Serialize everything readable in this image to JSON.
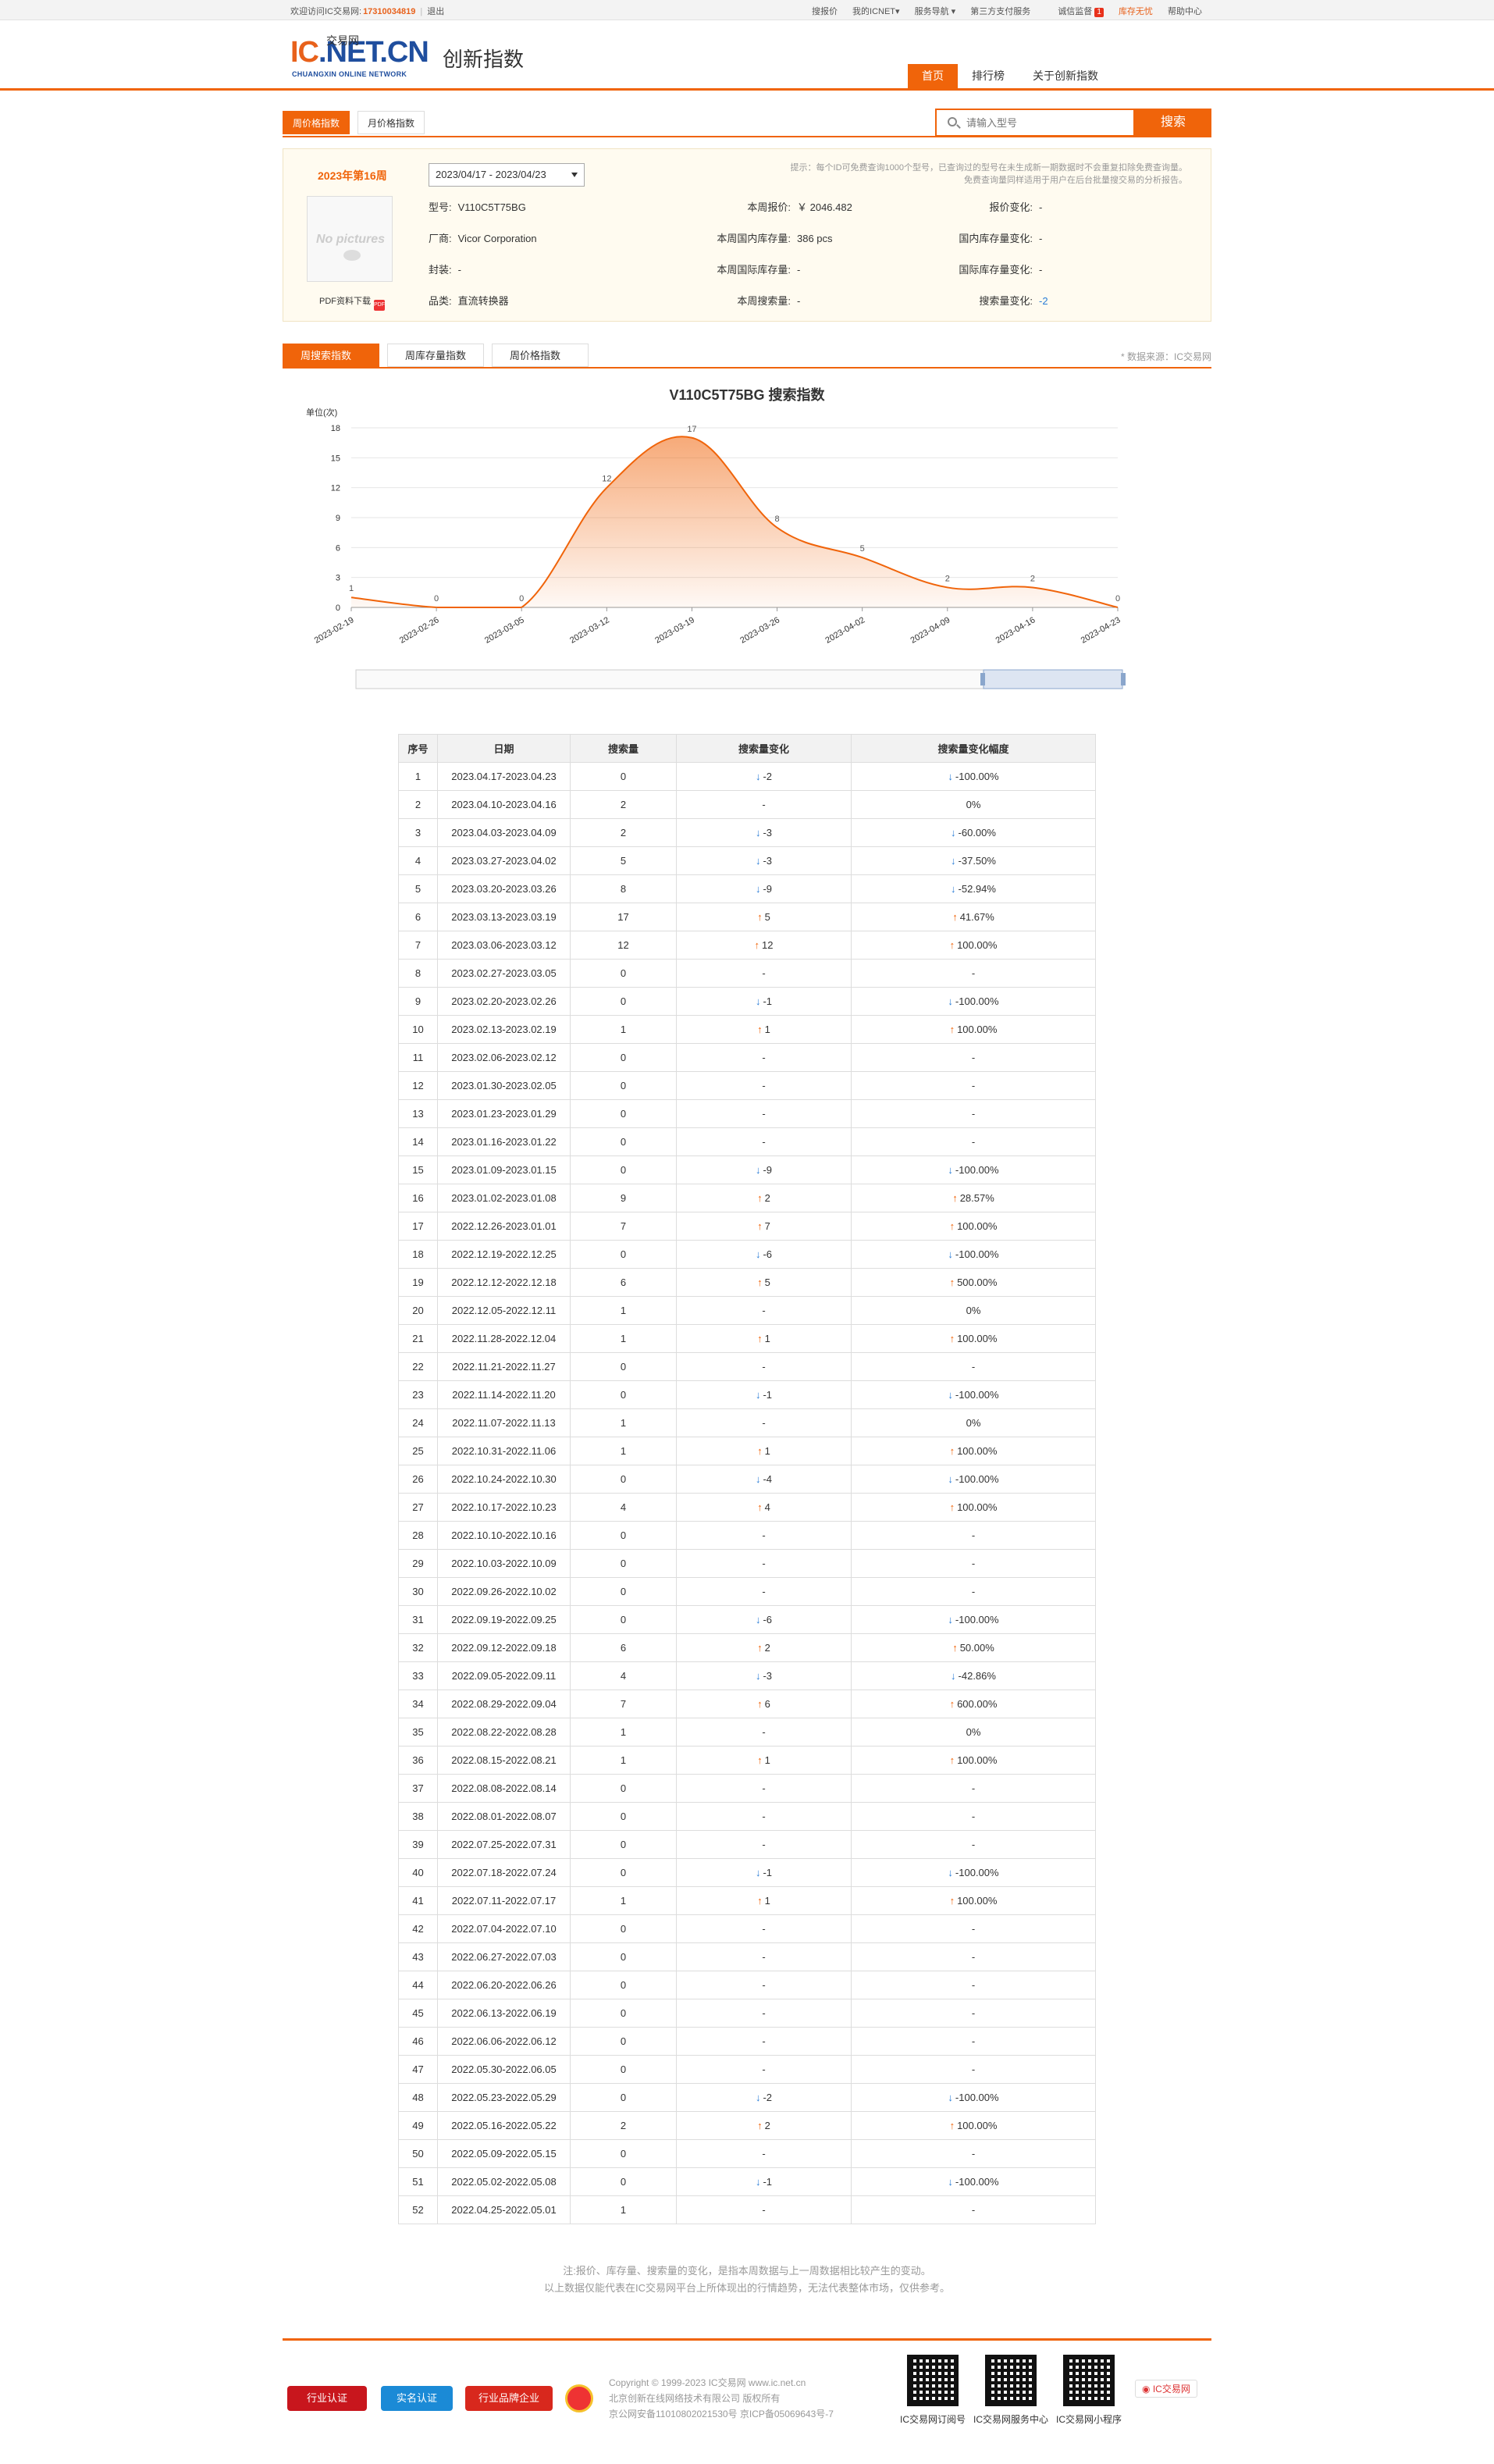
{
  "topbar": {
    "welcome": "欢迎访问IC交易网:",
    "phone": "17310034819",
    "logout": "退出",
    "links": [
      "搜报价",
      "我的ICNET▾",
      "服务导航 ▾",
      "第三方支付服务",
      "诚信监督",
      "库存无忧",
      "帮助中心"
    ],
    "badge": "1"
  },
  "logo": {
    "main": "IC",
    "domain": ".NET.CN",
    "cn": "交易网",
    "en": "CHUANGXIN ONLINE NETWORK"
  },
  "page_title": "创新指数",
  "nav": [
    "首页",
    "排行榜",
    "关于创新指数"
  ],
  "tabs1": [
    "周价格指数",
    "月价格指数"
  ],
  "search": {
    "placeholder": "请输入型号",
    "button": "搜索"
  },
  "info": {
    "week": "2023年第16周",
    "date_range": "2023/04/17 - 2023/04/23",
    "nopic": "No pictures",
    "pdf": "PDF资料下载",
    "pdf_icon": "PDF",
    "tip1": "提示：每个ID可免费查询1000个型号，已查询过的型号在未生成新一期数据时不会重复扣除免费查询量。",
    "tip2": "免费查询量同样适用于用户在后台批量搜交易的分析报告。",
    "fields": {
      "model_k": "型号:",
      "model_v": "V110C5T75BG",
      "maker_k": "厂商:",
      "maker_v": "Vicor Corporation",
      "pkg_k": "封装:",
      "pkg_v": "-",
      "cat_k": "品类:",
      "cat_v": "直流转换器",
      "price_k": "本周报价:",
      "price_v": "￥ 2046.482",
      "stock_k": "本周国内库存量:",
      "stock_v": "386  pcs",
      "istock_k": "本周国际库存量:",
      "istock_v": "-",
      "search_k": "本周搜索量:",
      "search_v": "-",
      "pchg_k": "报价变化:",
      "pchg_v": "-",
      "schg_k": "国内库存量变化:",
      "schg_v": "-",
      "ischg_k": "国际库存量变化:",
      "ischg_v": "-",
      "qchg_k": "搜索量变化:",
      "qchg_v": "-2"
    }
  },
  "tabs2": [
    "周搜索指数",
    "周库存量指数",
    "周价格指数"
  ],
  "data_source": "* 数据来源：IC交易网",
  "chart_data": {
    "type": "area",
    "title": "V110C5T75BG 搜索指数",
    "ylabel": "单位(次)",
    "ylim": [
      0,
      18
    ],
    "yticks": [
      0,
      3,
      6,
      9,
      12,
      15,
      18
    ],
    "x": [
      "2023-02-19",
      "2023-02-26",
      "2023-03-05",
      "2023-03-12",
      "2023-03-19",
      "2023-03-26",
      "2023-04-02",
      "2023-04-09",
      "2023-04-16",
      "2023-04-23"
    ],
    "values": [
      1,
      0,
      0,
      12,
      17,
      8,
      5,
      2,
      2,
      0
    ],
    "color": "#f0640a",
    "grid": true
  },
  "table": {
    "headers": [
      "序号",
      "日期",
      "搜索量",
      "搜索量变化",
      "搜索量变化幅度"
    ],
    "rows": [
      [
        "1",
        "2023.04.17-2023.04.23",
        "0",
        "d",
        "-2",
        "d",
        "-100.00%"
      ],
      [
        "2",
        "2023.04.10-2023.04.16",
        "2",
        "",
        "-",
        "",
        "0%"
      ],
      [
        "3",
        "2023.04.03-2023.04.09",
        "2",
        "d",
        "-3",
        "d",
        "-60.00%"
      ],
      [
        "4",
        "2023.03.27-2023.04.02",
        "5",
        "d",
        "-3",
        "d",
        "-37.50%"
      ],
      [
        "5",
        "2023.03.20-2023.03.26",
        "8",
        "d",
        "-9",
        "d",
        "-52.94%"
      ],
      [
        "6",
        "2023.03.13-2023.03.19",
        "17",
        "u",
        "5",
        "u",
        "41.67%"
      ],
      [
        "7",
        "2023.03.06-2023.03.12",
        "12",
        "u",
        "12",
        "u",
        "100.00%"
      ],
      [
        "8",
        "2023.02.27-2023.03.05",
        "0",
        "",
        "-",
        "",
        "-"
      ],
      [
        "9",
        "2023.02.20-2023.02.26",
        "0",
        "d",
        "-1",
        "d",
        "-100.00%"
      ],
      [
        "10",
        "2023.02.13-2023.02.19",
        "1",
        "u",
        "1",
        "u",
        "100.00%"
      ],
      [
        "11",
        "2023.02.06-2023.02.12",
        "0",
        "",
        "-",
        "",
        "-"
      ],
      [
        "12",
        "2023.01.30-2023.02.05",
        "0",
        "",
        "-",
        "",
        "-"
      ],
      [
        "13",
        "2023.01.23-2023.01.29",
        "0",
        "",
        "-",
        "",
        "-"
      ],
      [
        "14",
        "2023.01.16-2023.01.22",
        "0",
        "",
        "-",
        "",
        "-"
      ],
      [
        "15",
        "2023.01.09-2023.01.15",
        "0",
        "d",
        "-9",
        "d",
        "-100.00%"
      ],
      [
        "16",
        "2023.01.02-2023.01.08",
        "9",
        "u",
        "2",
        "u",
        "28.57%"
      ],
      [
        "17",
        "2022.12.26-2023.01.01",
        "7",
        "u",
        "7",
        "u",
        "100.00%"
      ],
      [
        "18",
        "2022.12.19-2022.12.25",
        "0",
        "d",
        "-6",
        "d",
        "-100.00%"
      ],
      [
        "19",
        "2022.12.12-2022.12.18",
        "6",
        "u",
        "5",
        "u",
        "500.00%"
      ],
      [
        "20",
        "2022.12.05-2022.12.11",
        "1",
        "",
        "-",
        "",
        "0%"
      ],
      [
        "21",
        "2022.11.28-2022.12.04",
        "1",
        "u",
        "1",
        "u",
        "100.00%"
      ],
      [
        "22",
        "2022.11.21-2022.11.27",
        "0",
        "",
        "-",
        "",
        "-"
      ],
      [
        "23",
        "2022.11.14-2022.11.20",
        "0",
        "d",
        "-1",
        "d",
        "-100.00%"
      ],
      [
        "24",
        "2022.11.07-2022.11.13",
        "1",
        "",
        "-",
        "",
        "0%"
      ],
      [
        "25",
        "2022.10.31-2022.11.06",
        "1",
        "u",
        "1",
        "u",
        "100.00%"
      ],
      [
        "26",
        "2022.10.24-2022.10.30",
        "0",
        "d",
        "-4",
        "d",
        "-100.00%"
      ],
      [
        "27",
        "2022.10.17-2022.10.23",
        "4",
        "u",
        "4",
        "u",
        "100.00%"
      ],
      [
        "28",
        "2022.10.10-2022.10.16",
        "0",
        "",
        "-",
        "",
        "-"
      ],
      [
        "29",
        "2022.10.03-2022.10.09",
        "0",
        "",
        "-",
        "",
        "-"
      ],
      [
        "30",
        "2022.09.26-2022.10.02",
        "0",
        "",
        "-",
        "",
        "-"
      ],
      [
        "31",
        "2022.09.19-2022.09.25",
        "0",
        "d",
        "-6",
        "d",
        "-100.00%"
      ],
      [
        "32",
        "2022.09.12-2022.09.18",
        "6",
        "u",
        "2",
        "u",
        "50.00%"
      ],
      [
        "33",
        "2022.09.05-2022.09.11",
        "4",
        "d",
        "-3",
        "d",
        "-42.86%"
      ],
      [
        "34",
        "2022.08.29-2022.09.04",
        "7",
        "u",
        "6",
        "u",
        "600.00%"
      ],
      [
        "35",
        "2022.08.22-2022.08.28",
        "1",
        "",
        "-",
        "",
        "0%"
      ],
      [
        "36",
        "2022.08.15-2022.08.21",
        "1",
        "u",
        "1",
        "u",
        "100.00%"
      ],
      [
        "37",
        "2022.08.08-2022.08.14",
        "0",
        "",
        "-",
        "",
        "-"
      ],
      [
        "38",
        "2022.08.01-2022.08.07",
        "0",
        "",
        "-",
        "",
        "-"
      ],
      [
        "39",
        "2022.07.25-2022.07.31",
        "0",
        "",
        "-",
        "",
        "-"
      ],
      [
        "40",
        "2022.07.18-2022.07.24",
        "0",
        "d",
        "-1",
        "d",
        "-100.00%"
      ],
      [
        "41",
        "2022.07.11-2022.07.17",
        "1",
        "u",
        "1",
        "u",
        "100.00%"
      ],
      [
        "42",
        "2022.07.04-2022.07.10",
        "0",
        "",
        "-",
        "",
        "-"
      ],
      [
        "43",
        "2022.06.27-2022.07.03",
        "0",
        "",
        "-",
        "",
        "-"
      ],
      [
        "44",
        "2022.06.20-2022.06.26",
        "0",
        "",
        "-",
        "",
        "-"
      ],
      [
        "45",
        "2022.06.13-2022.06.19",
        "0",
        "",
        "-",
        "",
        "-"
      ],
      [
        "46",
        "2022.06.06-2022.06.12",
        "0",
        "",
        "-",
        "",
        "-"
      ],
      [
        "47",
        "2022.05.30-2022.06.05",
        "0",
        "",
        "-",
        "",
        "-"
      ],
      [
        "48",
        "2022.05.23-2022.05.29",
        "0",
        "d",
        "-2",
        "d",
        "-100.00%"
      ],
      [
        "49",
        "2022.05.16-2022.05.22",
        "2",
        "u",
        "2",
        "u",
        "100.00%"
      ],
      [
        "50",
        "2022.05.09-2022.05.15",
        "0",
        "",
        "-",
        "",
        "-"
      ],
      [
        "51",
        "2022.05.02-2022.05.08",
        "0",
        "d",
        "-1",
        "d",
        "-100.00%"
      ],
      [
        "52",
        "2022.04.25-2022.05.01",
        "1",
        "",
        "-",
        "",
        "-"
      ]
    ]
  },
  "note": {
    "line1": "注:报价、库存量、搜索量的变化，是指本周数据与上一周数据相比较产生的变动。",
    "line2": "以上数据仅能代表在IC交易网平台上所体现出的行情趋势，无法代表整体市场，仅供参考。"
  },
  "footer": {
    "badges": [
      "行业认证",
      "实名认证",
      "行业品牌企业"
    ],
    "copy1": "Copyright © 1999-2023 IC交易网 www.ic.net.cn",
    "copy2": "北京创新在线网络技术有限公司 版权所有",
    "copy3": "京公网安备11010802021530号   京ICP备05069643号-7",
    "qr": [
      "IC交易网订阅号",
      "IC交易网服务中心",
      "IC交易网小程序"
    ],
    "weibo": "IC交易网"
  }
}
